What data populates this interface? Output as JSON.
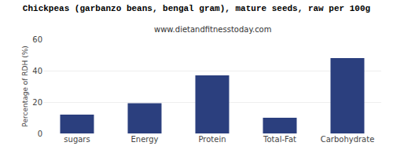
{
  "chart_data": {
    "type": "bar",
    "title": "Chickpeas (garbanzo beans, bengal gram), mature seeds, raw per 100g",
    "subtitle": "www.dietandfitnesstoday.com",
    "ylabel": "Percentage of RDH (%)",
    "categories": [
      "sugars",
      "Energy",
      "Protein",
      "Total-Fat",
      "Carbohydrate"
    ],
    "values": [
      12.0,
      19.2,
      37.0,
      10.0,
      48.0
    ],
    "color": "#2b3f7e",
    "ylim": [
      0,
      60
    ],
    "yticks": [
      0,
      20,
      40,
      60
    ],
    "grid": true
  }
}
